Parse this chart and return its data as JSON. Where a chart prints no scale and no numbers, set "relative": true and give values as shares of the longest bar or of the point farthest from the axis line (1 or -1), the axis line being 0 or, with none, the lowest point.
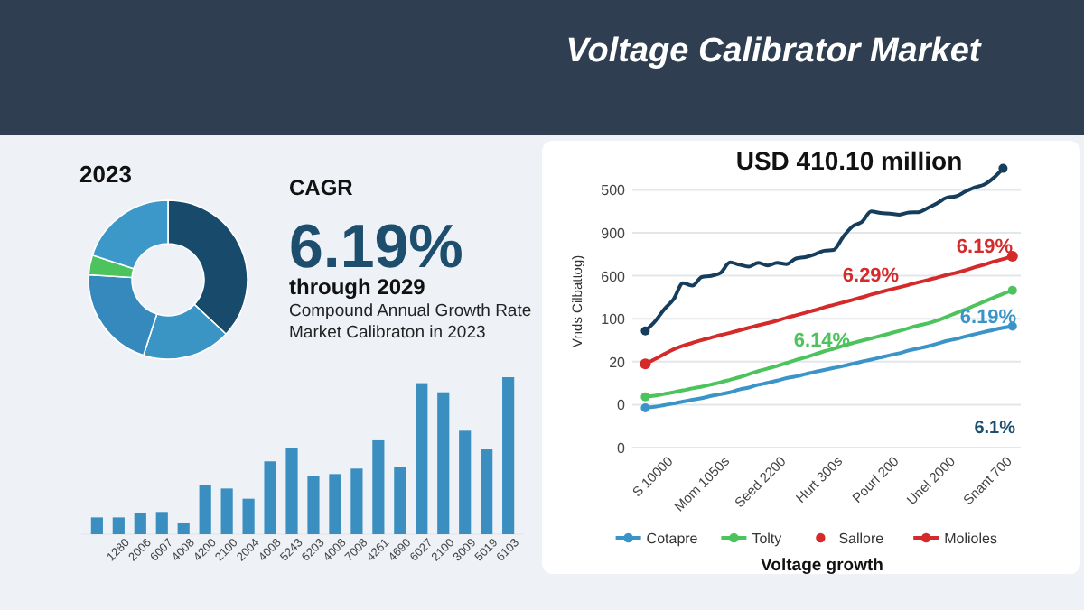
{
  "chart_data": [
    {
      "type": "other",
      "title": "Voltage Calibrator Market"
    },
    {
      "type": "donut",
      "title": "2023",
      "categories": [
        null,
        null,
        null,
        null,
        null
      ],
      "values": [
        37,
        18,
        21,
        4,
        20
      ],
      "colors": [
        "#174a6b",
        "#3a94c4",
        "#3689bd",
        "#4cc35c",
        "#3b98c8"
      ]
    },
    {
      "type": "other",
      "title": "CAGR",
      "annotations": [
        "6.19%",
        "through 2029",
        "Compound Annual Growth Rate",
        "Market Calibraton in 2023"
      ]
    },
    {
      "type": "bar",
      "relative": true,
      "color": "#3a8fc0",
      "categories": [
        null,
        "1280",
        "2006",
        "6007",
        "4008",
        "4200",
        "2100",
        "2004",
        "4008",
        "5243",
        "6203",
        "4008",
        "7008",
        "4261",
        "4690",
        "6027",
        "2100",
        "3009",
        "5019",
        "6103"
      ],
      "values": [
        0.107,
        0.107,
        0.138,
        0.142,
        0.069,
        0.314,
        0.291,
        0.226,
        0.464,
        0.548,
        0.372,
        0.383,
        0.418,
        0.598,
        0.429,
        0.962,
        0.904,
        0.659,
        0.54,
        1
      ]
    },
    {
      "type": "line",
      "relative": true,
      "title": "USD 410.10 million",
      "xlabel": "Voltage growth",
      "ylabel": "Vnds Cilbattog)",
      "grid": "y",
      "legend": "bottom",
      "categories": [
        null,
        null,
        null,
        "S 10000",
        null,
        null,
        null,
        null,
        null,
        "Mom 1050s",
        null,
        null,
        null,
        null,
        null,
        "Seed 2200",
        null,
        null,
        null,
        null,
        null,
        "Hurt 300s",
        null,
        null,
        null,
        null,
        null,
        "Pourf 200",
        null,
        null,
        null,
        null,
        null,
        "Unel 2000",
        null,
        null,
        null,
        null,
        null,
        "Snant 700"
      ],
      "annotations": [
        "6.19%",
        "6.29%",
        "6.14%",
        "6.19%",
        "6.1%",
        "500",
        "900",
        "600",
        "100",
        "20",
        "0",
        "0"
      ],
      "series": [
        {
          "name": "Cotapre",
          "color": "#3a94c8",
          "values": [
            0.142,
            0.146,
            0.152,
            0.158,
            0.165,
            0.171,
            0.177,
            0.185,
            0.191,
            0.198,
            0.208,
            0.215,
            0.225,
            0.232,
            0.24,
            0.249,
            0.255,
            0.263,
            0.271,
            0.278,
            0.285,
            0.292,
            0.3,
            0.308,
            0.315,
            0.323,
            0.331,
            0.338,
            0.348,
            0.355,
            0.363,
            0.372,
            0.382,
            0.389,
            0.398,
            0.406,
            0.414,
            0.422,
            0.429,
            0.435
          ]
        },
        {
          "name": "Tolty",
          "color": "#4cc35c",
          "values": [
            0.182,
            0.186,
            0.192,
            0.198,
            0.205,
            0.212,
            0.218,
            0.226,
            0.234,
            0.243,
            0.252,
            0.263,
            0.274,
            0.283,
            0.292,
            0.303,
            0.314,
            0.323,
            0.334,
            0.345,
            0.354,
            0.365,
            0.374,
            0.383,
            0.391,
            0.4,
            0.409,
            0.418,
            0.428,
            0.437,
            0.445,
            0.455,
            0.468,
            0.482,
            0.495,
            0.509,
            0.523,
            0.537,
            0.551,
            0.563
          ]
        },
        {
          "name": "Sallore",
          "type": "scatter",
          "color": "#d42a2a",
          "values": [
            0.3,
            null,
            null,
            null,
            null,
            null,
            null,
            null,
            null,
            null,
            null,
            null,
            null,
            null,
            null,
            null,
            null,
            null,
            null,
            null,
            null,
            null,
            null,
            null,
            null,
            null,
            null,
            null,
            null,
            null,
            null,
            null,
            null,
            null,
            null,
            null,
            null,
            null,
            null,
            0.685
          ]
        },
        {
          "name": "Molioles",
          "color": "#d42a2a",
          "values": [
            0.3,
            0.317,
            0.335,
            0.352,
            0.365,
            0.375,
            0.385,
            0.394,
            0.403,
            0.411,
            0.42,
            0.429,
            0.438,
            0.446,
            0.455,
            0.465,
            0.474,
            0.483,
            0.492,
            0.502,
            0.511,
            0.52,
            0.529,
            0.538,
            0.548,
            0.557,
            0.566,
            0.574,
            0.583,
            0.592,
            0.6,
            0.609,
            0.618,
            0.626,
            0.635,
            0.646,
            0.655,
            0.666,
            0.675,
            0.685
          ]
        },
        {
          "color": "#163e5c",
          "values": [
            0.418,
            0.451,
            0.495,
            0.531,
            0.589,
            0.58,
            0.611,
            0.615,
            0.626,
            0.663,
            0.655,
            0.648,
            0.662,
            0.652,
            0.662,
            0.657,
            0.677,
            0.682,
            0.692,
            0.705,
            0.708,
            0.754,
            0.792,
            0.808,
            0.846,
            0.84,
            0.838,
            0.834,
            0.842,
            0.843,
            0.858,
            0.875,
            0.895,
            0.9,
            0.917,
            0.932,
            0.942,
            0.966,
            1,
            null
          ]
        }
      ]
    }
  ]
}
